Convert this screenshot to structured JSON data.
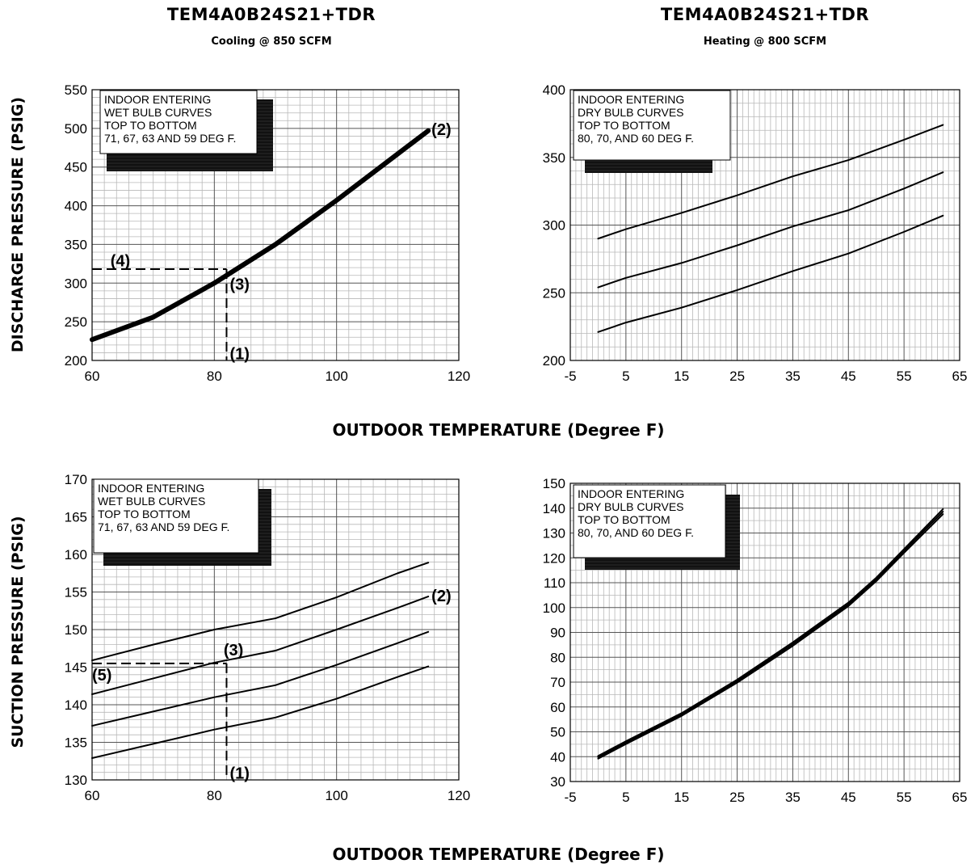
{
  "titles": {
    "left_title": "TEM4A0B24S21+TDR",
    "left_subtitle": "Cooling @ 850 SCFM",
    "right_title": "TEM4A0B24S21+TDR",
    "right_subtitle": "Heating @ 800 SCFM",
    "xlabel_top": "OUTDOOR TEMPERATURE (Degree F)",
    "xlabel_bottom": "OUTDOOR TEMPERATURE (Degree F)",
    "ylabel_top": "DISCHARGE PRESSURE (PSIG)",
    "ylabel_bottom": "SUCTION PRESSURE (PSIG)"
  },
  "chart_data": [
    {
      "id": "discharge-cooling",
      "type": "line",
      "xlim": [
        60,
        120
      ],
      "ylim": [
        200,
        550
      ],
      "xticks": [
        60,
        80,
        100,
        120
      ],
      "yticks": [
        200,
        250,
        300,
        350,
        400,
        450,
        500,
        550
      ],
      "grid": true,
      "legend": "top-left",
      "legend_lines": [
        "INDOOR ENTERING",
        "WET BULB CURVES",
        "TOP TO BOTTOM",
        "71, 67, 63 AND 59 DEG F."
      ],
      "series": [
        {
          "x": [
            60,
            70,
            80,
            90,
            100,
            110,
            115
          ],
          "y": [
            227,
            256,
            300,
            350,
            407,
            467,
            497
          ],
          "bold": true
        }
      ],
      "guides": [
        {
          "points": [
            [
              60,
              318
            ],
            [
              82,
              318
            ]
          ]
        },
        {
          "points": [
            [
              82,
              318
            ],
            [
              82,
              200
            ]
          ]
        }
      ],
      "annotations": [
        {
          "text": "(1)",
          "x": 82,
          "y": 210
        },
        {
          "text": "(2)",
          "x": 115,
          "y": 500
        },
        {
          "text": "(3)",
          "x": 82,
          "y": 300
        },
        {
          "text": "(4)",
          "x": 63,
          "y": 330
        }
      ]
    },
    {
      "id": "discharge-heating",
      "type": "line",
      "xlim": [
        -5,
        65
      ],
      "ylim": [
        200,
        400
      ],
      "xticks": [
        -5,
        5,
        15,
        25,
        35,
        45,
        55,
        65
      ],
      "yticks": [
        200,
        250,
        300,
        350,
        400
      ],
      "grid": true,
      "legend": "top-left",
      "legend_lines": [
        "INDOOR ENTERING",
        "DRY BULB CURVES",
        "TOP TO BOTTOM",
        "80, 70, AND 60 DEG F."
      ],
      "series": [
        {
          "x": [
            0,
            5,
            15,
            25,
            35,
            45,
            55,
            62
          ],
          "y": [
            290,
            297,
            309,
            322,
            336,
            348,
            363,
            374
          ],
          "bold": false
        },
        {
          "x": [
            0,
            5,
            15,
            25,
            35,
            45,
            55,
            62
          ],
          "y": [
            254,
            261,
            272,
            285,
            299,
            311,
            327,
            339
          ],
          "bold": false
        },
        {
          "x": [
            0,
            5,
            15,
            25,
            35,
            45,
            55,
            62
          ],
          "y": [
            221,
            228,
            239,
            252,
            266,
            279,
            295,
            307
          ],
          "bold": false
        }
      ],
      "guides": [],
      "annotations": []
    },
    {
      "id": "suction-cooling",
      "type": "line",
      "xlim": [
        60,
        120
      ],
      "ylim": [
        130,
        170
      ],
      "xticks": [
        60,
        80,
        100,
        120
      ],
      "yticks": [
        130,
        135,
        140,
        145,
        150,
        155,
        160,
        165,
        170
      ],
      "grid": true,
      "legend": "top-left",
      "legend_lines": [
        "INDOOR ENTERING",
        "WET BULB CURVES",
        "TOP TO BOTTOM",
        "71, 67, 63 AND 59 DEG F."
      ],
      "series": [
        {
          "x": [
            60,
            70,
            80,
            90,
            100,
            110,
            115
          ],
          "y": [
            145.9,
            148,
            150,
            151.5,
            154.3,
            157.5,
            158.9
          ],
          "bold": false
        },
        {
          "x": [
            60,
            70,
            80,
            90,
            100,
            110,
            115
          ],
          "y": [
            141.4,
            143.5,
            145.6,
            147.2,
            150,
            152.9,
            154.4
          ],
          "bold": false
        },
        {
          "x": [
            60,
            70,
            80,
            90,
            100,
            110,
            115
          ],
          "y": [
            137.2,
            139.1,
            141,
            142.6,
            145.3,
            148.2,
            149.7
          ],
          "bold": false
        },
        {
          "x": [
            60,
            70,
            80,
            90,
            100,
            110,
            115
          ],
          "y": [
            132.9,
            134.8,
            136.7,
            138.3,
            140.8,
            143.7,
            145.1
          ],
          "bold": false
        }
      ],
      "guides": [
        {
          "points": [
            [
              60,
              145.5
            ],
            [
              82,
              145.5
            ]
          ]
        },
        {
          "points": [
            [
              82,
              145.5
            ],
            [
              82,
              130
            ]
          ]
        }
      ],
      "annotations": [
        {
          "text": "(1)",
          "x": 82,
          "y": 131
        },
        {
          "text": "(2)",
          "x": 115,
          "y": 154.6
        },
        {
          "text": "(3)",
          "x": 81,
          "y": 147.4
        },
        {
          "text": "(5)",
          "x": 60,
          "y": 144.1
        }
      ]
    },
    {
      "id": "suction-heating",
      "type": "line",
      "xlim": [
        -5,
        65
      ],
      "ylim": [
        30,
        150
      ],
      "xticks": [
        -5,
        5,
        15,
        25,
        35,
        45,
        55,
        65
      ],
      "yticks": [
        30,
        40,
        50,
        60,
        70,
        80,
        90,
        100,
        110,
        120,
        130,
        140,
        150
      ],
      "grid": true,
      "legend": "top-left",
      "legend_lines": [
        "INDOOR ENTERING",
        "DRY BULB CURVES",
        "TOP TO BOTTOM",
        "80, 70, AND 60 DEG F."
      ],
      "series": [
        {
          "x": [
            0,
            5,
            15,
            25,
            35,
            45,
            50,
            55,
            62
          ],
          "y": [
            40.3,
            46.2,
            57.5,
            71,
            86,
            102,
            112,
            123.5,
            139.6
          ],
          "bold": false
        },
        {
          "x": [
            0,
            5,
            15,
            25,
            35,
            45,
            50,
            55,
            62
          ],
          "y": [
            39.8,
            45.7,
            57,
            70.4,
            85.3,
            101.3,
            111.3,
            122.8,
            138.6
          ],
          "bold": false
        },
        {
          "x": [
            0,
            5,
            15,
            25,
            35,
            45,
            50,
            55,
            62
          ],
          "y": [
            39.2,
            45.1,
            56.4,
            69.8,
            84.6,
            100.6,
            110.6,
            122,
            137.6
          ],
          "bold": false
        }
      ],
      "guides": [],
      "annotations": []
    }
  ]
}
